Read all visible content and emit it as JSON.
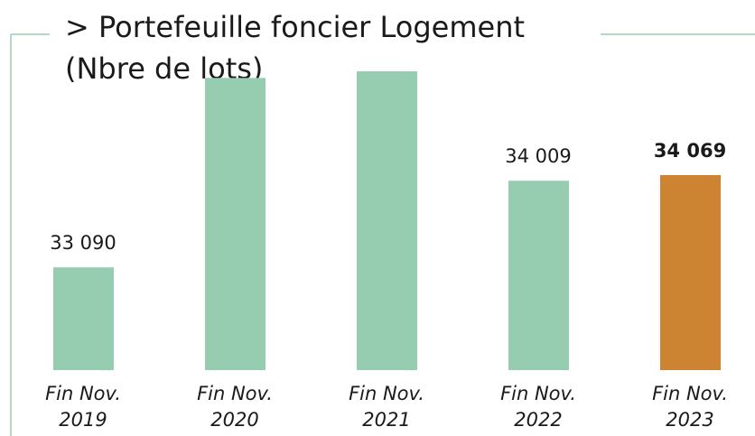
{
  "chart_data": {
    "type": "bar",
    "title": [
      "> Portefeuille foncier Logement",
      "(Nbre de lots)"
    ],
    "categories": [
      [
        "Fin Nov.",
        "2019"
      ],
      [
        "Fin Nov.",
        "2020"
      ],
      [
        "Fin Nov.",
        "2021"
      ],
      [
        "Fin Nov.",
        "2022"
      ],
      [
        "Fin Nov.",
        "2023"
      ]
    ],
    "values": [
      33090,
      35100,
      35170,
      34009,
      34069
    ],
    "value_labels": [
      "33 090",
      null,
      null,
      "34 009",
      "34 069"
    ],
    "colors": [
      "#96cdb0",
      "#96cdb0",
      "#96cdb0",
      "#96cdb0",
      "#cd8432"
    ],
    "ylim": [
      32000,
      35400
    ]
  }
}
